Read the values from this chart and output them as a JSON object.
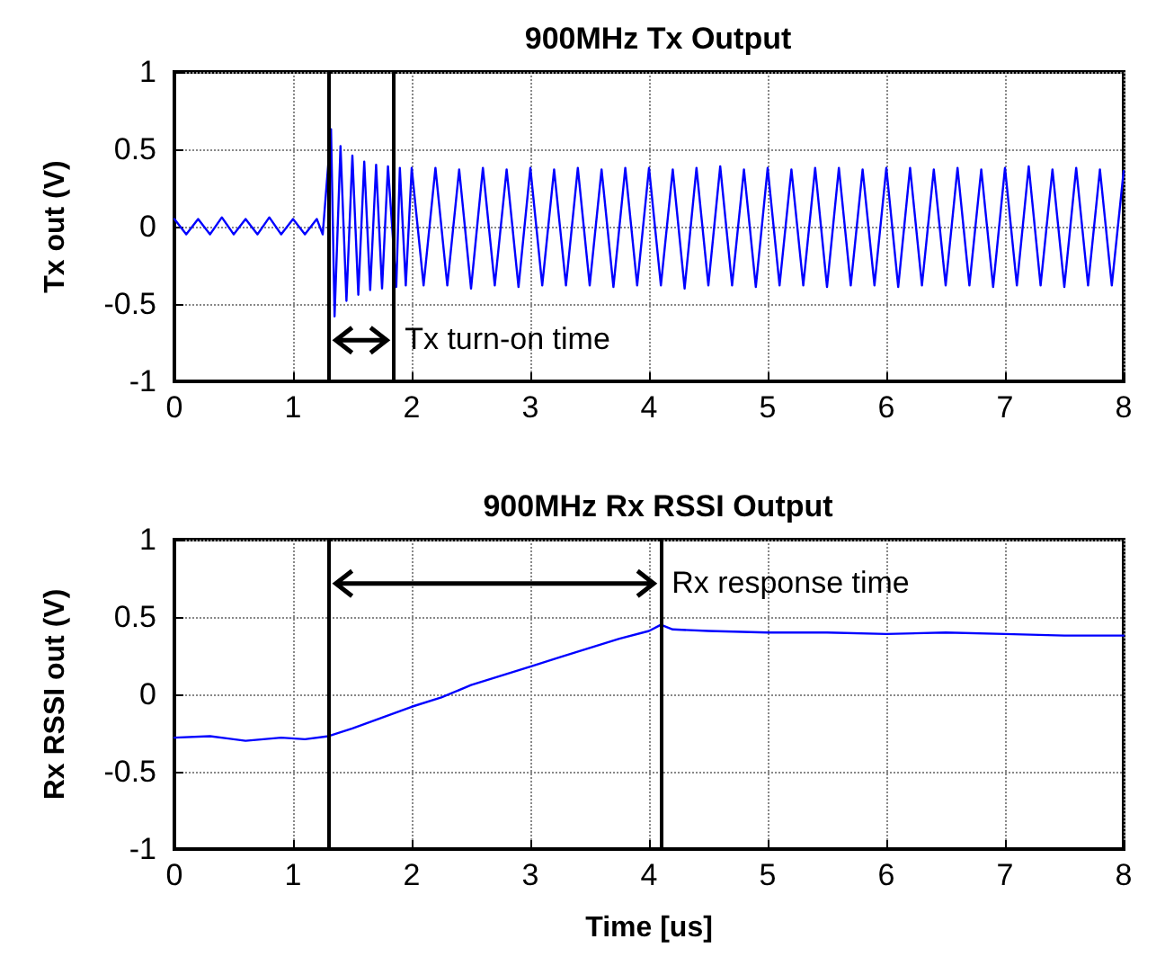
{
  "chart_data": [
    {
      "type": "line",
      "title": "900MHz Tx Output",
      "ylabel": "Tx out (V)",
      "x": [
        0,
        0.1,
        0.2,
        0.3,
        0.4,
        0.5,
        0.6,
        0.7,
        0.8,
        0.9,
        1.0,
        1.1,
        1.2,
        1.25,
        1.32,
        1.35,
        1.4,
        1.45,
        1.5,
        1.55,
        1.6,
        1.65,
        1.7,
        1.75,
        1.8,
        1.87,
        1.9,
        1.95,
        2.0,
        2.1,
        2.2,
        2.3,
        2.4,
        2.5,
        2.6,
        2.7,
        2.8,
        2.9,
        3.0,
        3.1,
        3.2,
        3.3,
        3.4,
        3.5,
        3.6,
        3.7,
        3.8,
        3.9,
        4.0,
        4.1,
        4.2,
        4.3,
        4.4,
        4.5,
        4.6,
        4.7,
        4.8,
        4.9,
        5.0,
        5.1,
        5.2,
        5.3,
        5.4,
        5.5,
        5.6,
        5.7,
        5.8,
        5.9,
        6.0,
        6.1,
        6.2,
        6.3,
        6.4,
        6.5,
        6.6,
        6.7,
        6.8,
        6.9,
        7.0,
        7.1,
        7.2,
        7.3,
        7.4,
        7.5,
        7.6,
        7.7,
        7.8,
        7.9,
        8.0
      ],
      "series": [
        {
          "color": "#0000ff",
          "values": [
            0.05,
            -0.05,
            0.05,
            -0.05,
            0.06,
            -0.05,
            0.05,
            -0.05,
            0.06,
            -0.05,
            0.05,
            -0.05,
            0.05,
            -0.05,
            0.63,
            -0.58,
            0.52,
            -0.48,
            0.46,
            -0.44,
            0.42,
            -0.41,
            0.4,
            -0.4,
            0.39,
            -0.39,
            0.38,
            -0.38,
            0.38,
            -0.38,
            0.38,
            -0.38,
            0.37,
            -0.4,
            0.38,
            -0.38,
            0.37,
            -0.39,
            0.38,
            -0.38,
            0.37,
            -0.38,
            0.38,
            -0.38,
            0.37,
            -0.39,
            0.38,
            -0.38,
            0.38,
            -0.38,
            0.37,
            -0.4,
            0.38,
            -0.38,
            0.39,
            -0.38,
            0.37,
            -0.39,
            0.38,
            -0.38,
            0.37,
            -0.38,
            0.38,
            -0.39,
            0.38,
            -0.38,
            0.37,
            -0.38,
            0.38,
            -0.39,
            0.38,
            -0.38,
            0.37,
            -0.38,
            0.38,
            -0.38,
            0.37,
            -0.39,
            0.38,
            -0.38,
            0.39,
            -0.38,
            0.37,
            -0.39,
            0.38,
            -0.38,
            0.37,
            -0.38,
            0.36
          ]
        }
      ],
      "xlim": [
        0,
        8
      ],
      "xticks": [
        0,
        1,
        2,
        3,
        4,
        5,
        6,
        7,
        8
      ],
      "ylim": [
        -1,
        1
      ],
      "yticks": [
        -1,
        -0.5,
        0,
        0.5,
        1
      ],
      "grid": true,
      "marker": "none",
      "line_style": "solid",
      "ref_lines": [
        {
          "axis": "x",
          "value": 1.3,
          "color": "#000000"
        },
        {
          "axis": "x",
          "value": 1.85,
          "color": "#000000"
        }
      ],
      "annotations": [
        {
          "text": "Tx turn-on time",
          "x": 1.85,
          "y": -0.85
        }
      ]
    },
    {
      "type": "line",
      "title": "900MHz Rx RSSI Output",
      "ylabel": "Rx RSSI out (V)",
      "xlabel": "Time [us]",
      "x": [
        0,
        0.3,
        0.6,
        0.9,
        1.1,
        1.3,
        1.5,
        1.75,
        2.0,
        2.25,
        2.5,
        2.75,
        3.0,
        3.25,
        3.5,
        3.75,
        4.0,
        4.1,
        4.2,
        4.5,
        5.0,
        5.5,
        6.0,
        6.5,
        7.0,
        7.5,
        8.0
      ],
      "series": [
        {
          "color": "#0000ff",
          "values": [
            -0.28,
            -0.27,
            -0.3,
            -0.28,
            -0.29,
            -0.27,
            -0.22,
            -0.15,
            -0.08,
            -0.02,
            0.06,
            0.12,
            0.18,
            0.24,
            0.3,
            0.36,
            0.41,
            0.45,
            0.42,
            0.41,
            0.4,
            0.4,
            0.39,
            0.4,
            0.39,
            0.38,
            0.38
          ]
        }
      ],
      "xlim": [
        0,
        8
      ],
      "xticks": [
        0,
        1,
        2,
        3,
        4,
        5,
        6,
        7,
        8
      ],
      "ylim": [
        -1,
        1
      ],
      "yticks": [
        -1,
        -0.5,
        0,
        0.5,
        1
      ],
      "grid": true,
      "marker": "none",
      "line_style": "solid",
      "ref_lines": [
        {
          "axis": "x",
          "value": 1.3,
          "color": "#000000"
        },
        {
          "axis": "x",
          "value": 4.1,
          "color": "#000000"
        }
      ],
      "annotations": [
        {
          "text": "Rx response time",
          "x": 4.1,
          "y": 0.6
        }
      ]
    }
  ]
}
